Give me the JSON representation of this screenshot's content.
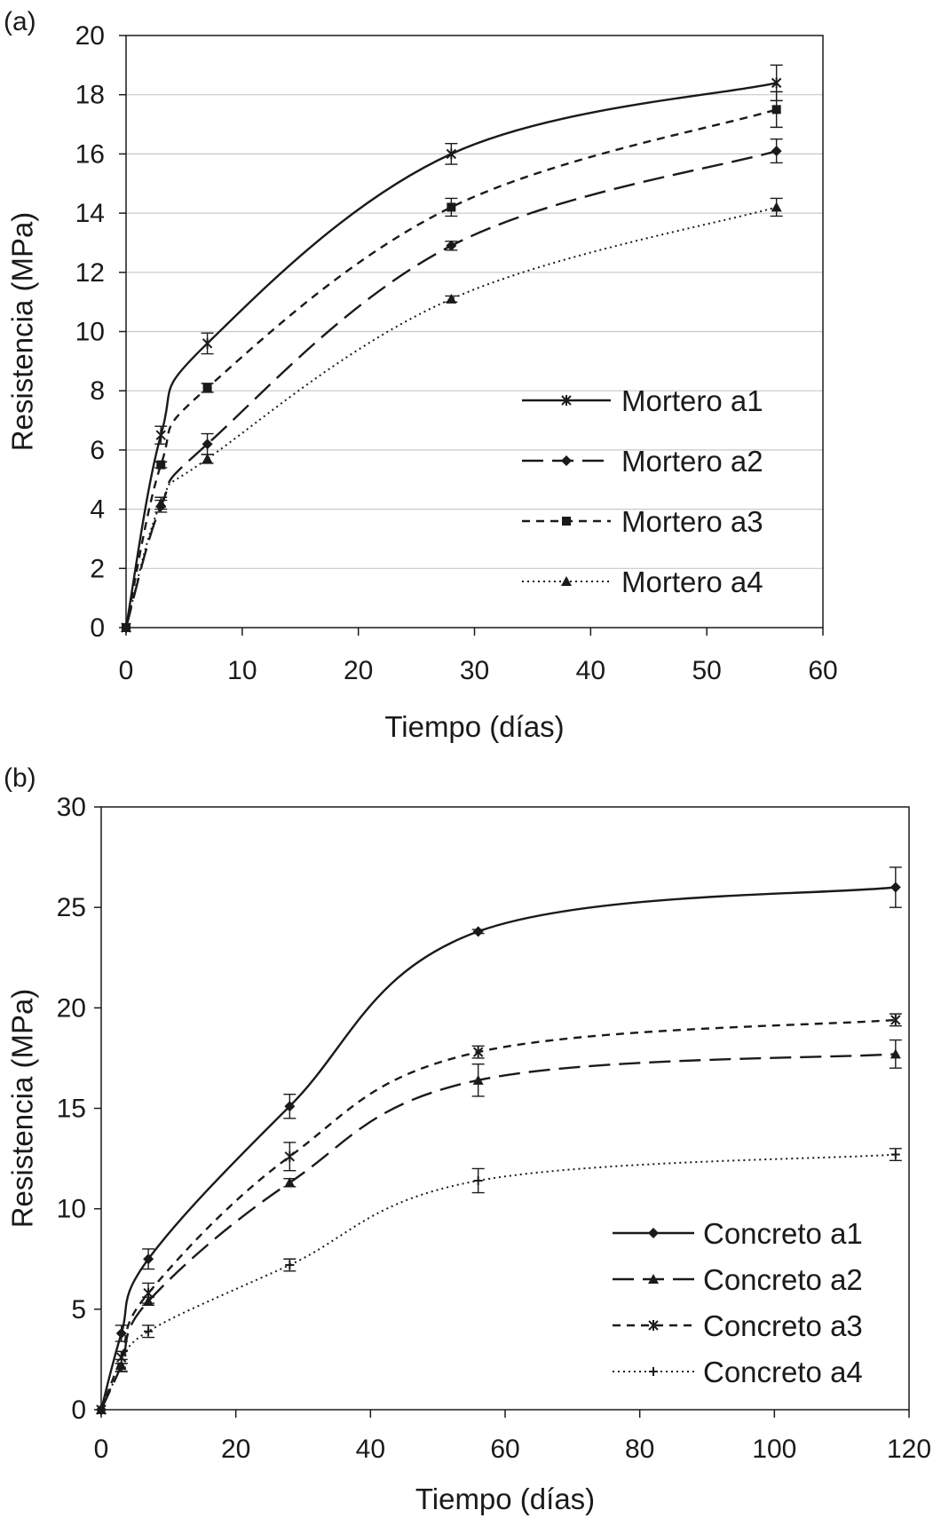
{
  "chart_data": [
    {
      "type": "line",
      "panel_label": "(a)",
      "xlabel": "Tiempo (días)",
      "ylabel": "Resistencia (MPa)",
      "xlim": [
        0,
        60
      ],
      "ylim": [
        0,
        20
      ],
      "x_ticks": [
        "0",
        "10",
        "20",
        "30",
        "40",
        "50",
        "60"
      ],
      "y_ticks": [
        "0",
        "2",
        "4",
        "6",
        "8",
        "10",
        "12",
        "14",
        "16",
        "18",
        "20"
      ],
      "grid": "horizontal",
      "legend_position": "bottom-right",
      "x": [
        0,
        3,
        7,
        28,
        56
      ],
      "series": [
        {
          "name": "Mortero a1",
          "marker": "star",
          "dash": "",
          "values": [
            0,
            6.5,
            9.6,
            16.0,
            18.4
          ],
          "errors": [
            0,
            0.3,
            0.35,
            0.35,
            0.6
          ]
        },
        {
          "name": "Mortero a2",
          "marker": "diamond",
          "dash": "24,10",
          "values": [
            0,
            4.1,
            6.2,
            12.9,
            16.1
          ],
          "errors": [
            0,
            0.2,
            0.35,
            0.15,
            0.4
          ]
        },
        {
          "name": "Mortero a3",
          "marker": "square",
          "dash": "9,7",
          "values": [
            0,
            5.5,
            8.1,
            14.2,
            17.5
          ],
          "errors": [
            0,
            0.1,
            0.15,
            0.3,
            0.6
          ]
        },
        {
          "name": "Mortero a4",
          "marker": "triangle",
          "dash": "2,4",
          "values": [
            0,
            4.2,
            5.7,
            11.1,
            14.2
          ],
          "errors": [
            0,
            0.2,
            0.15,
            0.1,
            0.3
          ]
        }
      ]
    },
    {
      "type": "line",
      "panel_label": "(b)",
      "xlabel": "Tiempo (días)",
      "ylabel": "Resistencia (MPa)",
      "xlim": [
        0,
        120
      ],
      "ylim": [
        0,
        30
      ],
      "x_ticks": [
        "0",
        "20",
        "40",
        "60",
        "80",
        "100",
        "120"
      ],
      "y_ticks": [
        "0",
        "5",
        "10",
        "15",
        "20",
        "25",
        "30"
      ],
      "grid": "none",
      "legend_position": "bottom-right",
      "x": [
        0,
        3,
        7,
        28,
        56,
        118
      ],
      "series": [
        {
          "name": "Concreto a1",
          "marker": "diamond",
          "dash": "",
          "values": [
            0,
            3.8,
            7.5,
            15.1,
            23.8,
            26.0
          ],
          "errors": [
            0,
            0.4,
            0.5,
            0.6,
            0.1,
            1.0
          ]
        },
        {
          "name": "Concreto a2",
          "marker": "triangle",
          "dash": "24,10",
          "values": [
            0,
            2.2,
            5.4,
            11.3,
            16.4,
            17.7
          ],
          "errors": [
            0,
            0.3,
            0.2,
            0.2,
            0.8,
            0.7
          ]
        },
        {
          "name": "Concreto a3",
          "marker": "star",
          "dash": "9,7",
          "values": [
            0,
            2.6,
            5.8,
            12.6,
            17.8,
            19.4
          ],
          "errors": [
            0,
            0.3,
            0.5,
            0.7,
            0.3,
            0.3
          ]
        },
        {
          "name": "Concreto a4",
          "marker": "plus",
          "dash": "2,4",
          "values": [
            0,
            2.1,
            3.9,
            7.2,
            11.4,
            12.7
          ],
          "errors": [
            0,
            0.2,
            0.3,
            0.3,
            0.6,
            0.3
          ]
        }
      ]
    }
  ]
}
